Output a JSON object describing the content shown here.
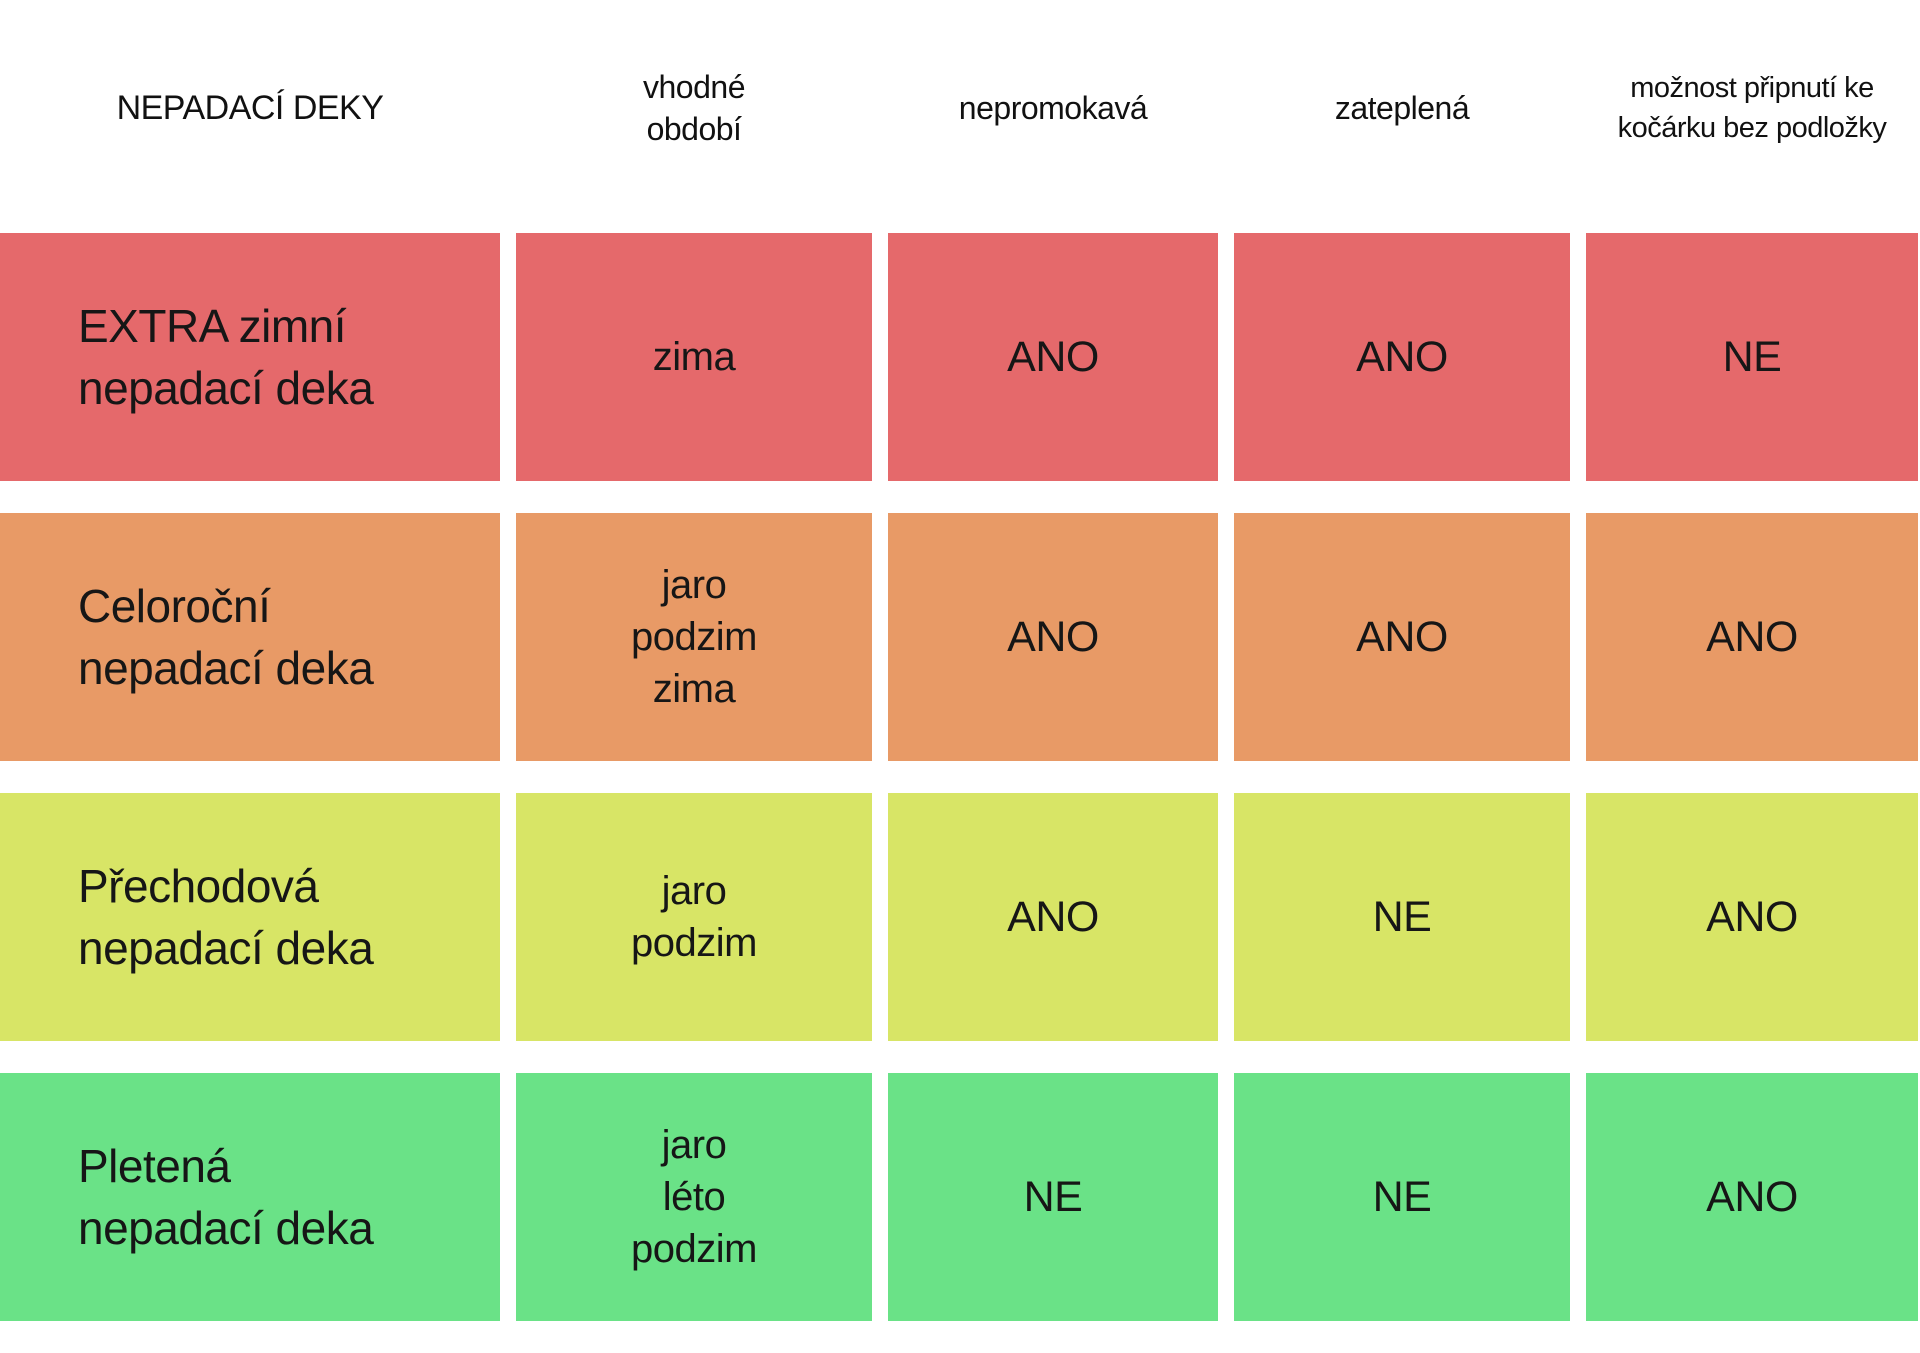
{
  "chart_data": {
    "type": "table",
    "title": "NEPADACÍ DEKY",
    "columns": [
      "NEPADACÍ DEKY",
      "vhodné období",
      "nepromokavá",
      "zateplená",
      "možnost připnutí ke kočárku bez podložky"
    ],
    "rows": [
      {
        "name": "EXTRA zimní nepadací deka",
        "name_lines": [
          "EXTRA zimní",
          "nepadací deka"
        ],
        "vhodne_obdobi": [
          "zima"
        ],
        "nepromokava": "ANO",
        "zateplena": "ANO",
        "pripnuti_ke_kocarku": "NE",
        "color": "#e5696b"
      },
      {
        "name": "Celoroční nepadací deka",
        "name_lines": [
          "Celoroční",
          "nepadací deka"
        ],
        "vhodne_obdobi": [
          "jaro",
          "podzim",
          "zima"
        ],
        "nepromokava": "ANO",
        "zateplena": "ANO",
        "pripnuti_ke_kocarku": "ANO",
        "color": "#e89a66"
      },
      {
        "name": "Přechodová nepadací deka",
        "name_lines": [
          "Přechodová",
          "nepadací deka"
        ],
        "vhodne_obdobi": [
          "jaro",
          "podzim"
        ],
        "nepromokava": "ANO",
        "zateplena": "NE",
        "pripnuti_ke_kocarku": "ANO",
        "color": "#d8e566"
      },
      {
        "name": "Pletená nepadací deka",
        "name_lines": [
          "Pletená",
          "nepadací deka"
        ],
        "vhodne_obdobi": [
          "jaro",
          "léto",
          "podzim"
        ],
        "nepromokava": "NE",
        "zateplena": "NE",
        "pripnuti_ke_kocarku": "ANO",
        "color": "#6ae287"
      }
    ],
    "row_colors": [
      "#e5696b",
      "#e89a66",
      "#d8e566",
      "#6ae287"
    ],
    "layout": {
      "background": "#ffffff",
      "text_color": "#161616",
      "grid_gap_color": "#ffffff"
    }
  }
}
